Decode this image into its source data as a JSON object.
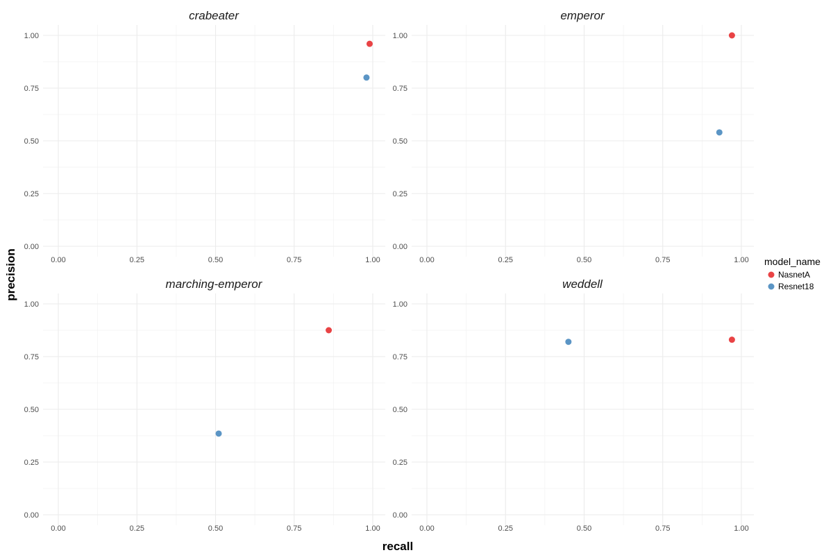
{
  "chart_data": {
    "type": "scatter",
    "xlabel": "recall",
    "ylabel": "precision",
    "xlim": [
      0,
      1
    ],
    "ylim": [
      0,
      1
    ],
    "x_ticks": [
      "0.00",
      "0.25",
      "0.50",
      "0.75",
      "1.00"
    ],
    "y_ticks": [
      "0.00",
      "0.25",
      "0.50",
      "0.75",
      "1.00"
    ],
    "grid": true,
    "legend": {
      "title": "model_name",
      "position": "right",
      "entries": [
        {
          "name": "NasnetA",
          "color": "#e41a1c"
        },
        {
          "name": "Resnet18",
          "color": "#377eb8"
        }
      ]
    },
    "panels": [
      {
        "title": "crabeater",
        "points": [
          {
            "series": "NasnetA",
            "x": 0.99,
            "y": 0.96
          },
          {
            "series": "Resnet18",
            "x": 0.98,
            "y": 0.8
          }
        ]
      },
      {
        "title": "emperor",
        "points": [
          {
            "series": "NasnetA",
            "x": 0.97,
            "y": 1.0
          },
          {
            "series": "Resnet18",
            "x": 0.93,
            "y": 0.54
          }
        ]
      },
      {
        "title": "marching-emperor",
        "points": [
          {
            "series": "NasnetA",
            "x": 0.86,
            "y": 0.875
          },
          {
            "series": "Resnet18",
            "x": 0.51,
            "y": 0.385
          }
        ]
      },
      {
        "title": "weddell",
        "points": [
          {
            "series": "Resnet18",
            "x": 0.45,
            "y": 0.82
          },
          {
            "series": "NasnetA",
            "x": 0.97,
            "y": 0.83
          }
        ]
      }
    ]
  }
}
